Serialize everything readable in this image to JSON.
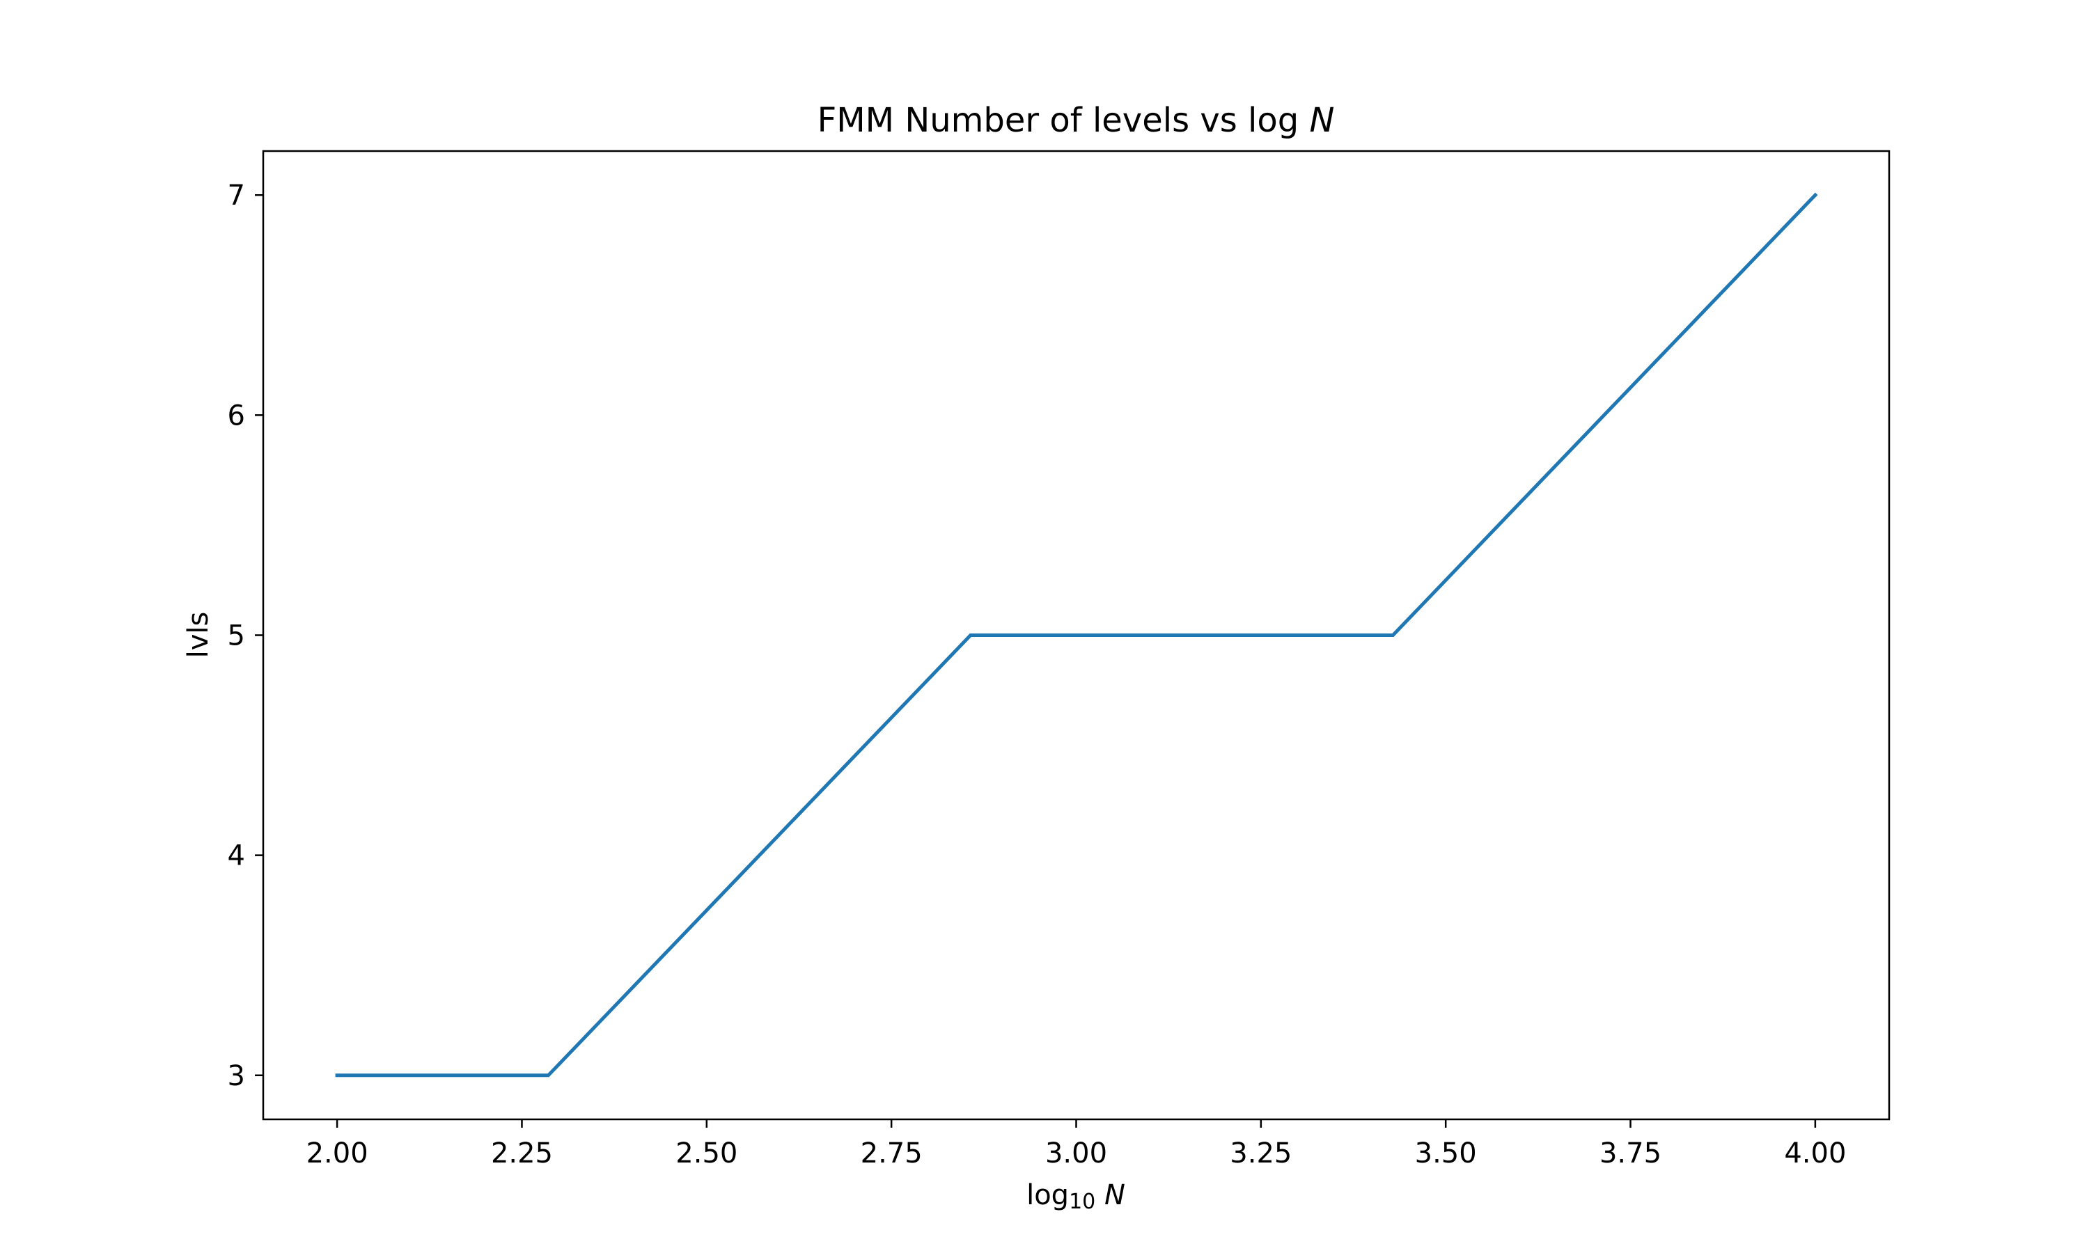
{
  "chart_data": {
    "type": "line",
    "title": "FMM Number of levels vs log",
    "title_var": "N",
    "xlabel": "log",
    "xlabel_sub": "10",
    "xlabel_var": "N",
    "ylabel": "lvls",
    "x": [
      2.0,
      2.2857,
      2.5714,
      2.8571,
      3.1429,
      3.4286,
      3.7143,
      4.0
    ],
    "series": [
      {
        "values": [
          3,
          3,
          4,
          5,
          5,
          5,
          6,
          7
        ],
        "color": "#1f77b4"
      }
    ],
    "xlim": [
      1.9,
      4.1
    ],
    "ylim": [
      2.8,
      7.2
    ],
    "xticks": [
      "2.00",
      "2.25",
      "2.50",
      "2.75",
      "3.00",
      "3.25",
      "3.50",
      "3.75",
      "4.00"
    ],
    "yticks": [
      "3",
      "4",
      "5",
      "6",
      "7"
    ],
    "grid": false,
    "legend": "none"
  }
}
